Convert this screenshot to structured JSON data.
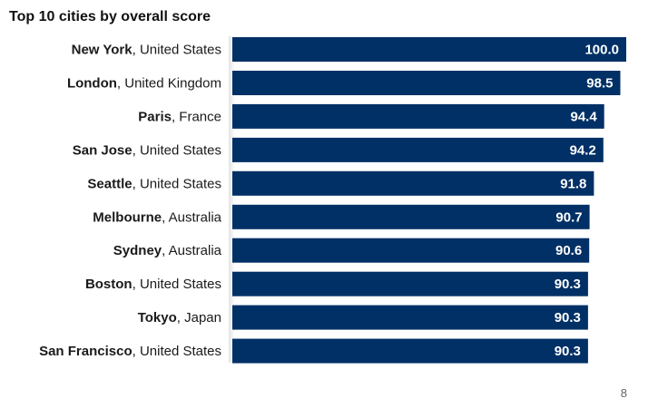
{
  "page_number": "8",
  "colors": {
    "bar": "#003066",
    "bar_label": "#ffffff",
    "axis_shadow": "#e3e3e3",
    "text": "#1a1a1a"
  },
  "chart_data": {
    "type": "bar",
    "orientation": "horizontal",
    "title": "Top 10 cities by overall score",
    "xlabel": "",
    "ylabel": "",
    "xlim": [
      0,
      100
    ],
    "grid": false,
    "legend": "none",
    "categories": [
      {
        "city": "New York",
        "country": ", United States"
      },
      {
        "city": "London",
        "country": ", United Kingdom"
      },
      {
        "city": "Paris",
        "country": ", France"
      },
      {
        "city": "San Jose",
        "country": ", United States"
      },
      {
        "city": "Seattle",
        "country": ", United States"
      },
      {
        "city": "Melbourne",
        "country": ", Australia"
      },
      {
        "city": "Sydney",
        "country": ", Australia"
      },
      {
        "city": "Boston",
        "country": ", United States"
      },
      {
        "city": "Tokyo",
        "country": ", Japan"
      },
      {
        "city": "San Francisco",
        "country": ", United States"
      }
    ],
    "values": [
      100.0,
      98.5,
      94.4,
      94.2,
      91.8,
      90.7,
      90.6,
      90.3,
      90.3,
      90.3
    ],
    "data_labels": [
      "100.0",
      "98.5",
      "94.4",
      "94.2",
      "91.8",
      "90.7",
      "90.6",
      "90.3",
      "90.3",
      "90.3"
    ]
  }
}
